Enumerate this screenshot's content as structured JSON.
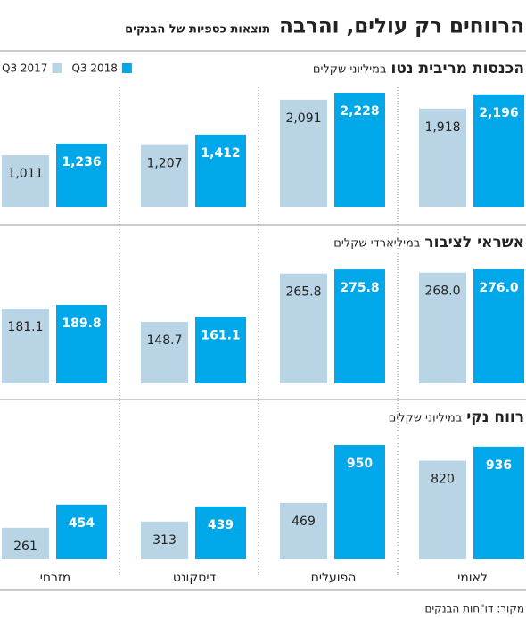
{
  "chart_data": {
    "type": "bar",
    "title": "הרווחים רק עולים, והרבה",
    "subtitle": "תוצאות כספיות של הבנקים",
    "source": "מקור: דו\"חות הבנקים",
    "categories": [
      "לאומי",
      "הפועלים",
      "דיסקונט",
      "מזרחי"
    ],
    "series": [
      {
        "name": "Q3 2017",
        "color": "#b9d5e5"
      },
      {
        "name": "Q3 2018",
        "color": "#00a7e9"
      }
    ],
    "panels": [
      {
        "title": "הכנסות מריבית נטו",
        "unit": "במיליוני שקלים",
        "series": [
          {
            "values": [
              1918,
              2091,
              1207,
              1011
            ],
            "value_labels": [
              "1,918",
              "2,091",
              "1,207",
              "1,011"
            ]
          },
          {
            "values": [
              2196,
              2228,
              1412,
              1236
            ],
            "value_labels": [
              "2,196",
              "2,228",
              "1,412",
              "1,236"
            ]
          }
        ]
      },
      {
        "title": "אשראי לציבור",
        "unit": "במיליארדי שקלים",
        "series": [
          {
            "values": [
              268.0,
              265.8,
              148.7,
              181.1
            ],
            "value_labels": [
              "268.0",
              "265.8",
              "148.7",
              "181.1"
            ]
          },
          {
            "values": [
              276.0,
              275.8,
              161.1,
              189.8
            ],
            "value_labels": [
              "276.0",
              "275.8",
              "161.1",
              "189.8"
            ]
          }
        ]
      },
      {
        "title": "רווח נקי",
        "unit": "במיליוני שקלים",
        "series": [
          {
            "values": [
              820,
              469,
              313,
              261
            ]
          },
          {
            "values": [
              936,
              950,
              439,
              454
            ]
          }
        ]
      }
    ]
  }
}
